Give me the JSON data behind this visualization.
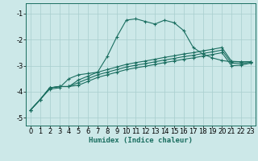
{
  "xlabel": "Humidex (Indice chaleur)",
  "ylabel": "",
  "bg_color": "#cce8e8",
  "line_color": "#1a6e60",
  "grid_color": "#a8cece",
  "xlim": [
    -0.5,
    23.5
  ],
  "ylim": [
    -5.3,
    -0.6
  ],
  "xticks": [
    0,
    1,
    2,
    3,
    4,
    5,
    6,
    7,
    8,
    9,
    10,
    11,
    12,
    13,
    14,
    15,
    16,
    17,
    18,
    19,
    20,
    21,
    22,
    23
  ],
  "yticks": [
    -5,
    -4,
    -3,
    -2,
    -1
  ],
  "line1_x": [
    0,
    1,
    2,
    3,
    4,
    5,
    6,
    7,
    8,
    9,
    10,
    11,
    12,
    13,
    14,
    15,
    16,
    17,
    18,
    19,
    20,
    21,
    22,
    23
  ],
  "line1_y": [
    -4.7,
    -4.3,
    -3.85,
    -3.8,
    -3.8,
    -3.55,
    -3.4,
    -3.25,
    -3.15,
    -3.05,
    -2.95,
    -2.88,
    -2.82,
    -2.75,
    -2.68,
    -2.62,
    -2.55,
    -2.5,
    -2.43,
    -2.37,
    -2.3,
    -2.83,
    -2.85,
    -2.85
  ],
  "line2_x": [
    0,
    1,
    2,
    3,
    4,
    5,
    6,
    7,
    8,
    9,
    10,
    11,
    12,
    13,
    14,
    15,
    16,
    17,
    18,
    19,
    20,
    21,
    22,
    23
  ],
  "line2_y": [
    -4.7,
    -4.3,
    -3.85,
    -3.8,
    -3.8,
    -3.65,
    -3.5,
    -3.35,
    -3.25,
    -3.15,
    -3.05,
    -2.98,
    -2.92,
    -2.85,
    -2.78,
    -2.72,
    -2.65,
    -2.6,
    -2.53,
    -2.47,
    -2.4,
    -2.9,
    -2.92,
    -2.87
  ],
  "line3_x": [
    0,
    1,
    2,
    3,
    4,
    5,
    6,
    7,
    8,
    9,
    10,
    11,
    12,
    13,
    14,
    15,
    16,
    17,
    18,
    19,
    20,
    21,
    22,
    23
  ],
  "line3_y": [
    -4.7,
    -4.3,
    -3.85,
    -3.8,
    -3.8,
    -3.75,
    -3.6,
    -3.45,
    -3.35,
    -3.25,
    -3.15,
    -3.08,
    -3.02,
    -2.95,
    -2.88,
    -2.82,
    -2.75,
    -2.7,
    -2.63,
    -2.57,
    -2.5,
    -3.0,
    -2.98,
    -2.9
  ],
  "line4_x": [
    0,
    1,
    2,
    3,
    4,
    5,
    6,
    7,
    8,
    9,
    10,
    11,
    12,
    13,
    14,
    15,
    16,
    17,
    18,
    19,
    20,
    21,
    22,
    23
  ],
  "line4_y": [
    -4.7,
    -4.3,
    -3.9,
    -3.85,
    -3.5,
    -3.35,
    -3.3,
    -3.25,
    -2.65,
    -1.9,
    -1.25,
    -1.2,
    -1.3,
    -1.4,
    -1.25,
    -1.35,
    -1.65,
    -2.3,
    -2.55,
    -2.7,
    -2.8,
    -2.85,
    -2.85,
    -2.85
  ]
}
